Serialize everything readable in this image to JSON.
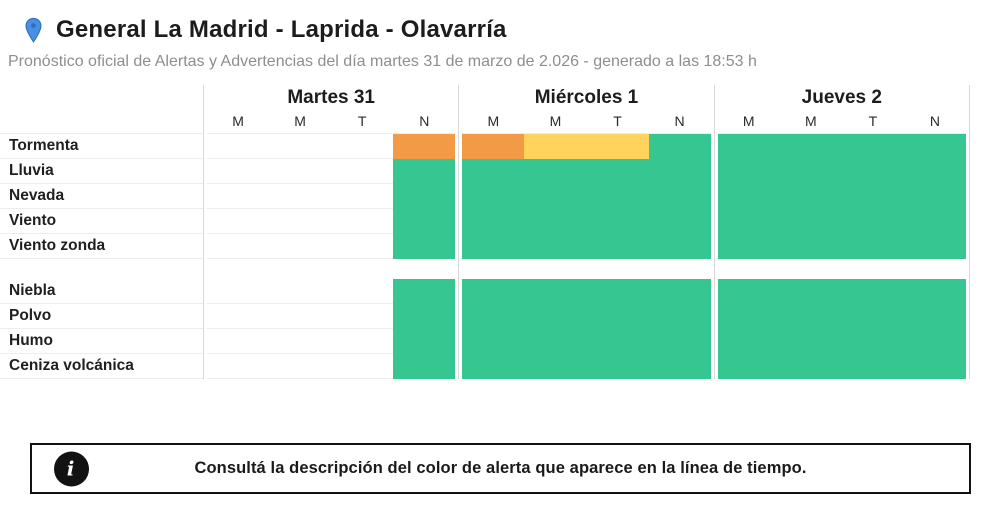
{
  "header": {
    "location_title": "General La Madrid - Laprida - Olavarría",
    "subtitle": "Pronóstico oficial de Alertas y Advertencias del día martes 31 de marzo de 2.026 - generado a las 18:53 h",
    "pin_color": "#4a90e2",
    "pin_stroke": "#2f6fbe"
  },
  "forecast_table": {
    "days": [
      {
        "label": "Martes 31",
        "periods": [
          "M",
          "M",
          "T",
          "N"
        ]
      },
      {
        "label": "Miércoles 1",
        "periods": [
          "M",
          "M",
          "T",
          "N"
        ]
      },
      {
        "label": "Jueves 2",
        "periods": [
          "M",
          "M",
          "T",
          "N"
        ]
      }
    ],
    "alert_colors": {
      "O": "#f39a46",
      "Y": "#ffd35c",
      "G": "#35c692"
    },
    "sections": [
      {
        "rows": [
          {
            "label": "Tormenta",
            "cells": [
              "",
              "",
              "",
              "O",
              "O",
              "Y",
              "Y",
              "G",
              "G",
              "G",
              "G",
              "G"
            ]
          },
          {
            "label": "Lluvia",
            "cells": [
              "",
              "",
              "",
              "G",
              "G",
              "G",
              "G",
              "G",
              "G",
              "G",
              "G",
              "G"
            ]
          },
          {
            "label": "Nevada",
            "cells": [
              "",
              "",
              "",
              "G",
              "G",
              "G",
              "G",
              "G",
              "G",
              "G",
              "G",
              "G"
            ]
          },
          {
            "label": "Viento",
            "cells": [
              "",
              "",
              "",
              "G",
              "G",
              "G",
              "G",
              "G",
              "G",
              "G",
              "G",
              "G"
            ]
          },
          {
            "label": "Viento zonda",
            "cells": [
              "",
              "",
              "",
              "G",
              "G",
              "G",
              "G",
              "G",
              "G",
              "G",
              "G",
              "G"
            ]
          }
        ]
      },
      {
        "rows": [
          {
            "label": "Niebla",
            "cells": [
              "",
              "",
              "",
              "G",
              "G",
              "G",
              "G",
              "G",
              "G",
              "G",
              "G",
              "G"
            ]
          },
          {
            "label": "Polvo",
            "cells": [
              "",
              "",
              "",
              "G",
              "G",
              "G",
              "G",
              "G",
              "G",
              "G",
              "G",
              "G"
            ]
          },
          {
            "label": "Humo",
            "cells": [
              "",
              "",
              "",
              "G",
              "G",
              "G",
              "G",
              "G",
              "G",
              "G",
              "G",
              "G"
            ]
          },
          {
            "label": "Ceniza volcánica",
            "cells": [
              "",
              "",
              "",
              "G",
              "G",
              "G",
              "G",
              "G",
              "G",
              "G",
              "G",
              "G"
            ]
          }
        ]
      }
    ]
  },
  "info_bar": {
    "text": "Consultá la descripción del color de alerta que aparece en la línea de tiempo."
  }
}
